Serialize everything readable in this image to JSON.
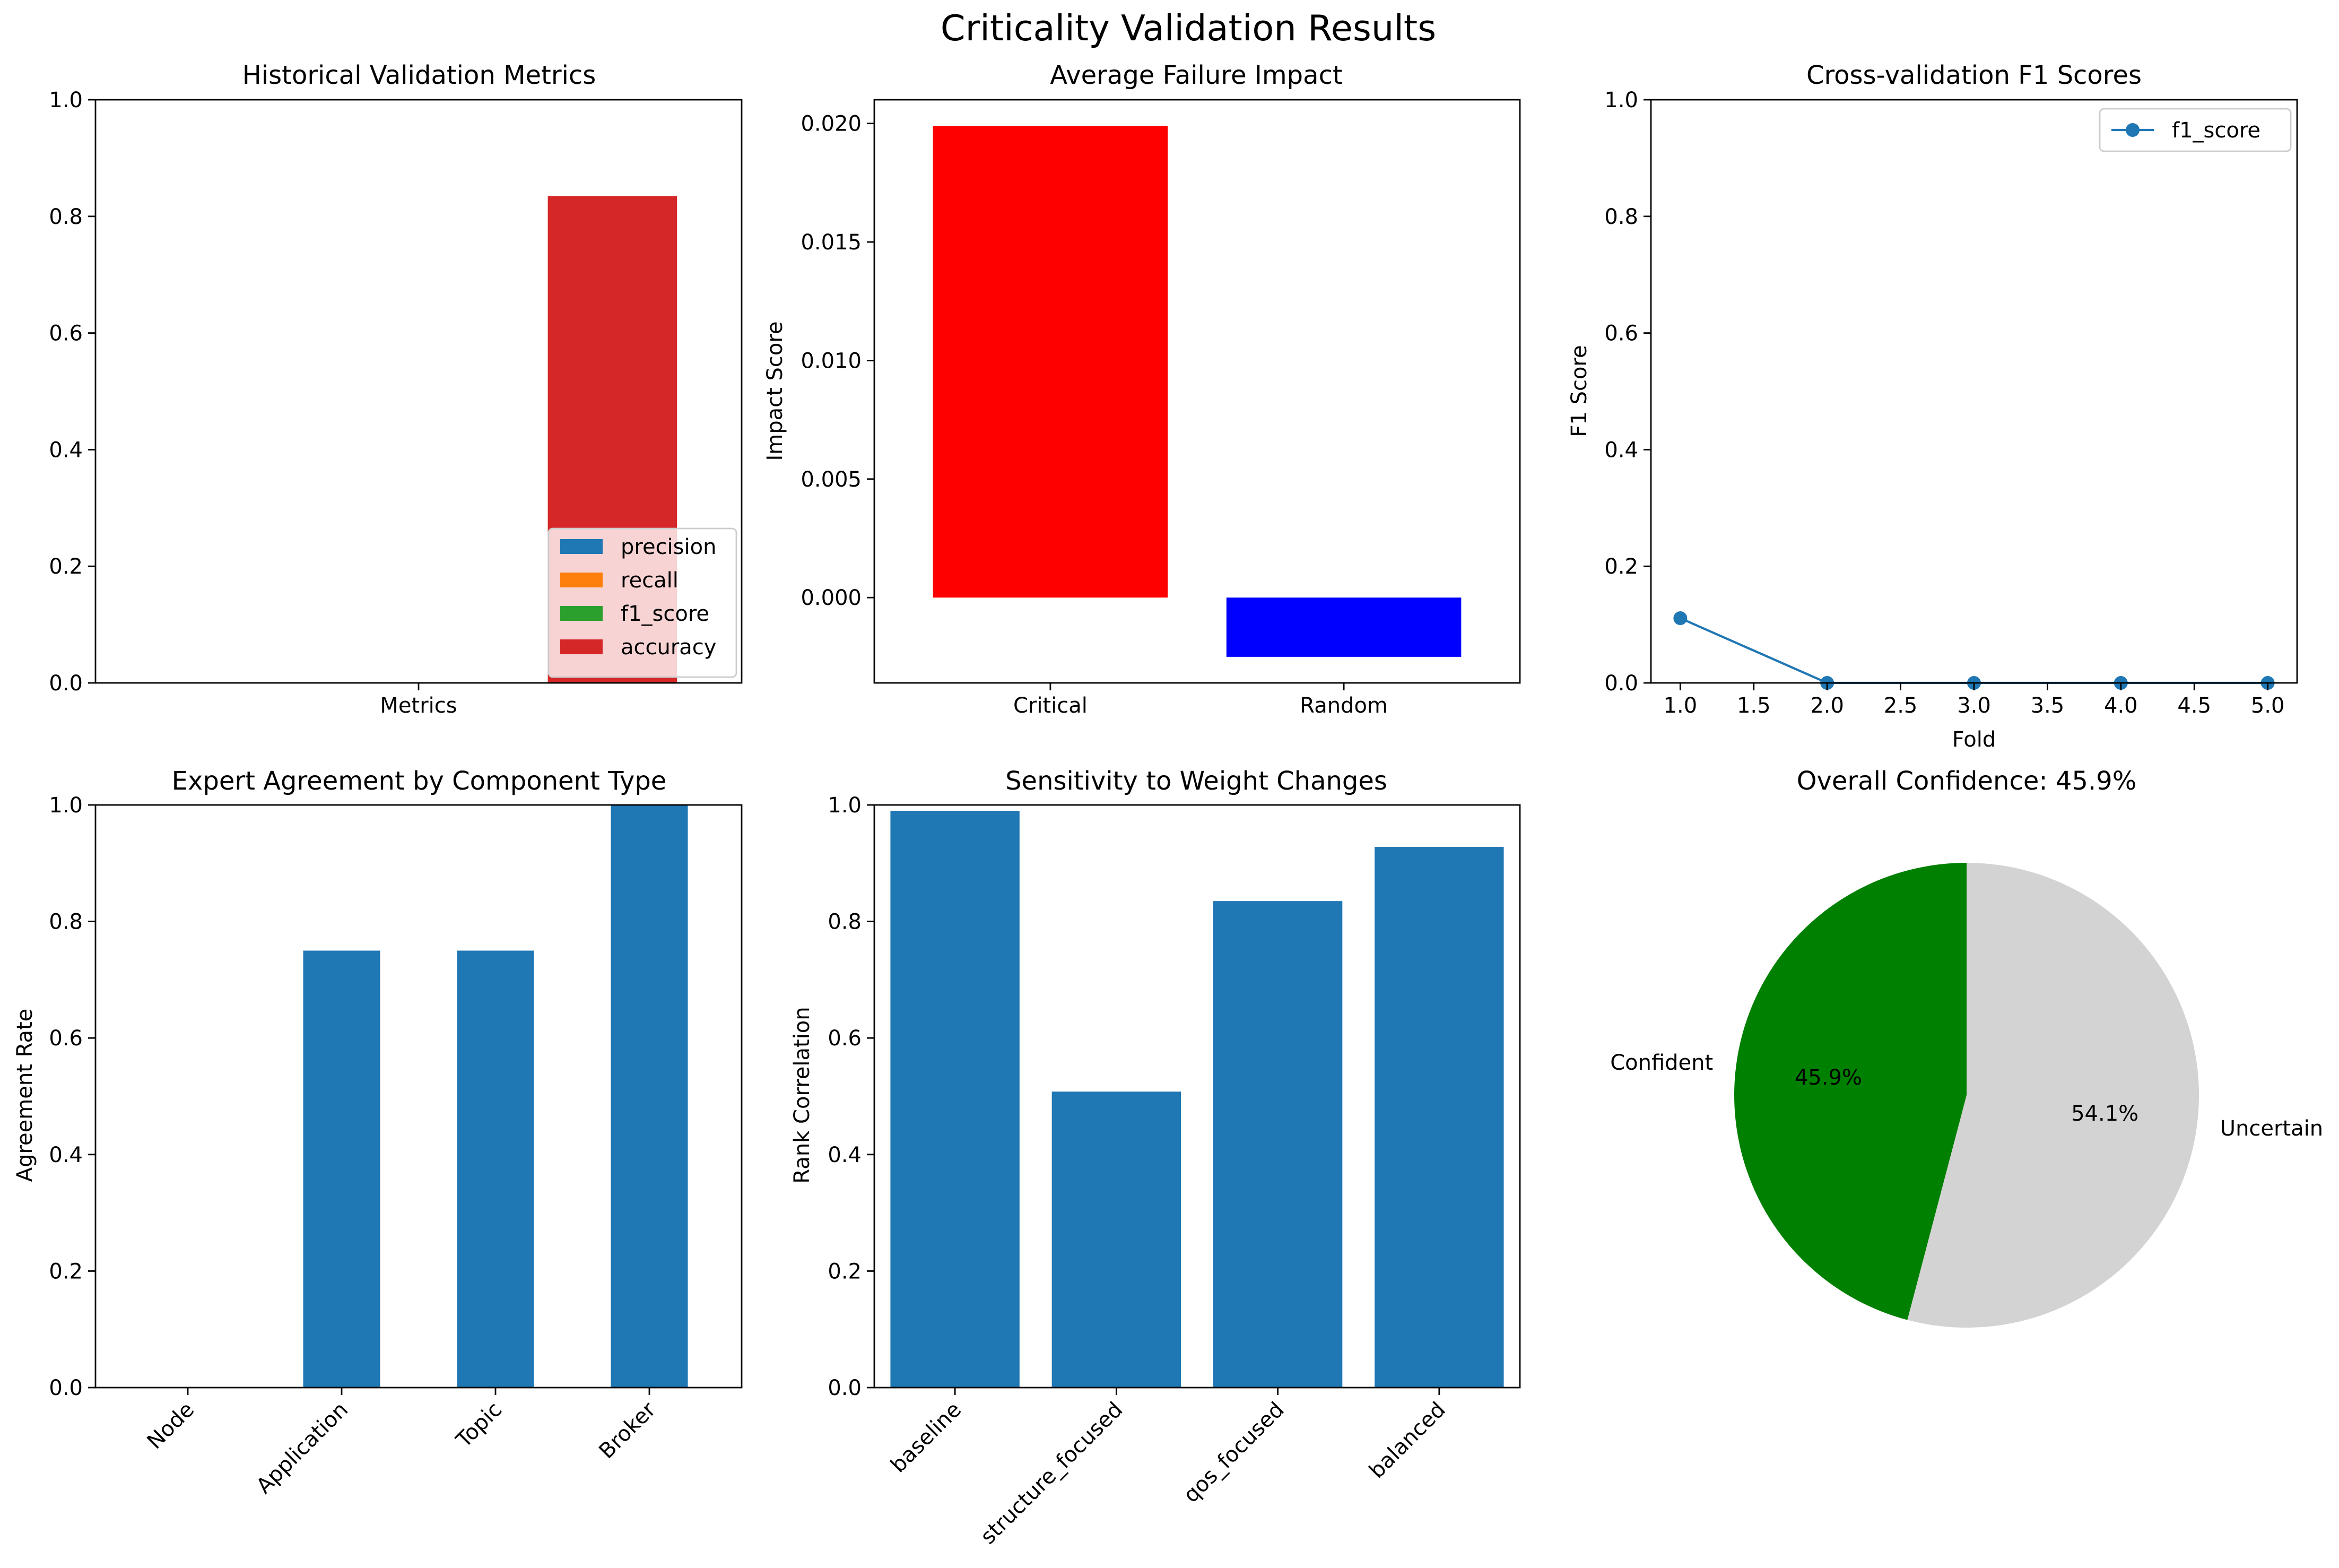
{
  "figure_title": "Criticality Validation Results",
  "chart_data": [
    {
      "type": "bar",
      "title": "Historical Validation Metrics",
      "xlabel": "",
      "ylabel": "",
      "categories": [
        "Metrics"
      ],
      "series": [
        {
          "name": "precision",
          "values": [
            0.0
          ],
          "color": "#1f77b4"
        },
        {
          "name": "recall",
          "values": [
            0.0
          ],
          "color": "#ff7f0e"
        },
        {
          "name": "f1_score",
          "values": [
            0.0
          ],
          "color": "#2ca02c"
        },
        {
          "name": "accuracy",
          "values": [
            0.835
          ],
          "color": "#d62728"
        }
      ],
      "ylim": [
        0,
        1.0
      ],
      "yticks": [
        0.0,
        0.2,
        0.4,
        0.6,
        0.8,
        1.0
      ],
      "legend": "lower-right",
      "grid": false
    },
    {
      "type": "bar",
      "title": "Average Failure Impact",
      "xlabel": "",
      "ylabel": "Impact Score",
      "categories": [
        "Critical",
        "Random"
      ],
      "values": [
        0.0199,
        -0.0025
      ],
      "colors": [
        "#ff0000",
        "#0000ff"
      ],
      "ylim": [
        -0.0036,
        0.021
      ],
      "yticks": [
        0.0,
        0.005,
        0.01,
        0.015,
        0.02
      ],
      "ytick_labels": [
        "0.000",
        "0.005",
        "0.010",
        "0.015",
        "0.020"
      ],
      "grid": false
    },
    {
      "type": "line",
      "title": "Cross-validation F1 Scores",
      "xlabel": "Fold",
      "ylabel": "F1 Score",
      "series": [
        {
          "name": "f1_score",
          "x": [
            1,
            2,
            3,
            4,
            5
          ],
          "values": [
            0.111,
            0.0,
            0.0,
            0.0,
            0.0
          ],
          "color": "#1f77b4"
        }
      ],
      "xlim": [
        0.8,
        5.2
      ],
      "xticks": [
        1.0,
        1.5,
        2.0,
        2.5,
        3.0,
        3.5,
        4.0,
        4.5,
        5.0
      ],
      "ylim": [
        0,
        1.0
      ],
      "yticks": [
        0.0,
        0.2,
        0.4,
        0.6,
        0.8,
        1.0
      ],
      "legend": "top-right",
      "grid": false
    },
    {
      "type": "bar",
      "title": "Expert Agreement by Component Type",
      "xlabel": "",
      "ylabel": "Agreement Rate",
      "categories": [
        "Node",
        "Application",
        "Topic",
        "Broker"
      ],
      "values": [
        0.0,
        0.75,
        0.75,
        1.0
      ],
      "color": "#1f77b4",
      "ylim": [
        0,
        1.0
      ],
      "yticks": [
        0.0,
        0.2,
        0.4,
        0.6,
        0.8,
        1.0
      ],
      "xtick_rotation": 45,
      "grid": false
    },
    {
      "type": "bar",
      "title": "Sensitivity to Weight Changes",
      "xlabel": "",
      "ylabel": "Rank Correlation",
      "categories": [
        "baseline",
        "structure_focused",
        "qos_focused",
        "balanced"
      ],
      "values": [
        0.99,
        0.508,
        0.835,
        0.928
      ],
      "color": "#1f77b4",
      "ylim": [
        0,
        1.0
      ],
      "yticks": [
        0.0,
        0.2,
        0.4,
        0.6,
        0.8,
        1.0
      ],
      "xtick_rotation": 45,
      "grid": false
    },
    {
      "type": "pie",
      "title": "Overall Confidence: 45.9%",
      "labels": [
        "Confident",
        "Uncertain"
      ],
      "values": [
        45.9,
        54.1
      ],
      "pct_labels": [
        "45.9%",
        "54.1%"
      ],
      "colors": [
        "#008000",
        "#d3d3d3"
      ],
      "start_angle": 90
    }
  ]
}
